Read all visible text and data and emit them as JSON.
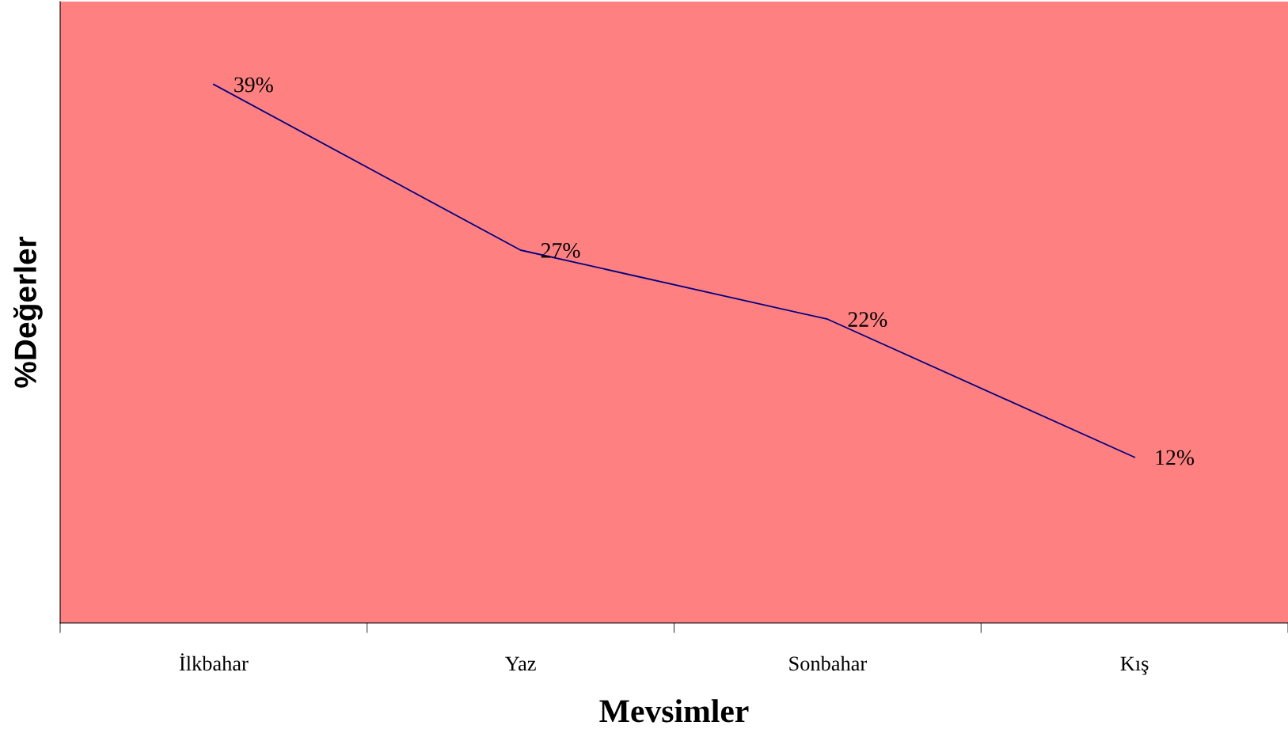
{
  "chart_data": {
    "type": "line",
    "xlabel": "Mevsimler",
    "ylabel": "%Değerler",
    "categories": [
      "İlkbahar",
      "Yaz",
      "Sonbahar",
      "Kış"
    ],
    "series": [
      {
        "color": "#000080",
        "values": [
          39,
          27,
          22,
          12
        ],
        "value_labels": [
          "39%",
          "27%",
          "22%",
          "12%"
        ]
      }
    ],
    "ylim": [
      0,
      45
    ],
    "tick_labels": "x",
    "grid": false,
    "legend": false,
    "marker": "none",
    "line_style": "solid"
  }
}
